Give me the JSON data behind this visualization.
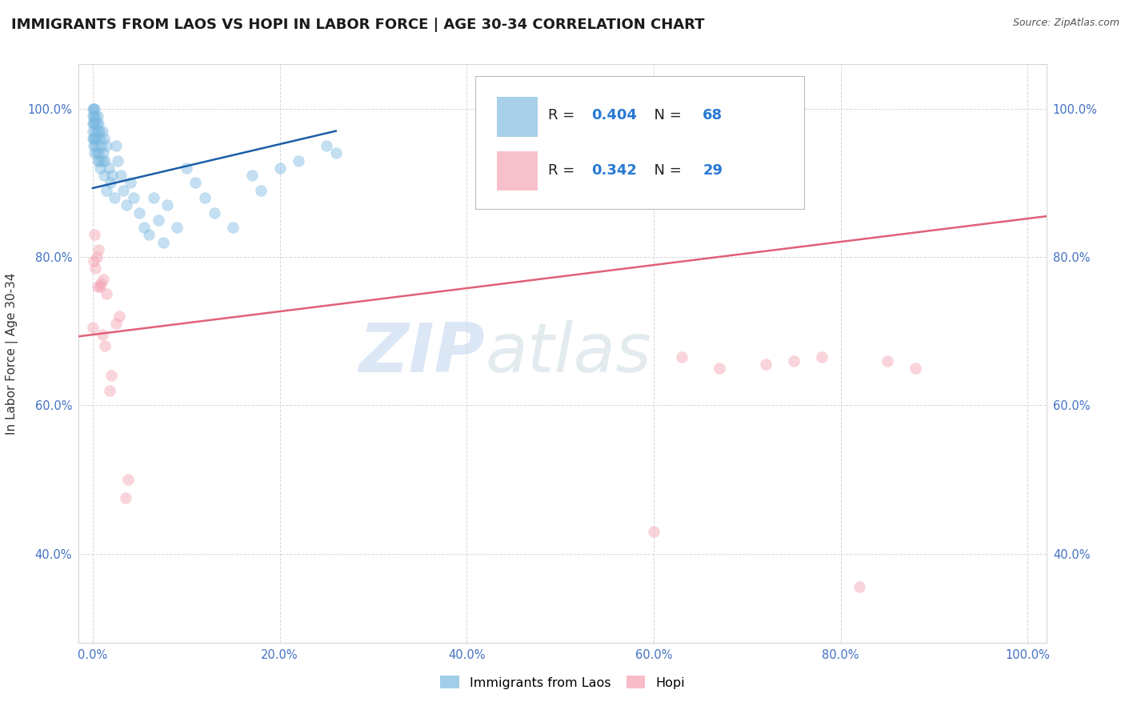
{
  "title": "IMMIGRANTS FROM LAOS VS HOPI IN LABOR FORCE | AGE 30-34 CORRELATION CHART",
  "source_text": "Source: ZipAtlas.com",
  "ylabel": "In Labor Force | Age 30-34",
  "watermark_zip": "ZIP",
  "watermark_atlas": "atlas",
  "blue_R": 0.404,
  "blue_N": 68,
  "pink_R": 0.342,
  "pink_N": 29,
  "legend_labels": [
    "Immigrants from Laos",
    "Hopi"
  ],
  "blue_color": "#7ab8e0",
  "pink_color": "#f4a0b0",
  "blue_line_color": "#1a5ea8",
  "pink_line_color": "#e0607a",
  "xlim": [
    -0.015,
    1.02
  ],
  "ylim": [
    0.28,
    1.06
  ],
  "xticks": [
    0.0,
    0.2,
    0.4,
    0.6,
    0.8,
    1.0
  ],
  "xtick_labels": [
    "0.0%",
    "20.0%",
    "40.0%",
    "60.0%",
    "80.0%",
    "100.0%"
  ],
  "yticks": [
    0.4,
    0.6,
    0.8,
    1.0
  ],
  "ytick_labels": [
    "40.0%",
    "60.0%",
    "80.0%",
    "100.0%"
  ],
  "grid_color": "#cccccc",
  "bg_color": "#ffffff",
  "title_fontsize": 13,
  "axis_label_fontsize": 11,
  "tick_fontsize": 10.5,
  "scatter_alpha": 0.45,
  "scatter_size": 100,
  "legend_R_color": "#2979d4",
  "legend_N_color": "#2979d4",
  "blue_trend_x": [
    0.0,
    0.26
  ],
  "blue_trend_y": [
    0.893,
    0.97
  ],
  "pink_trend_x": [
    -0.015,
    1.02
  ],
  "pink_trend_y": [
    0.693,
    0.855
  ]
}
